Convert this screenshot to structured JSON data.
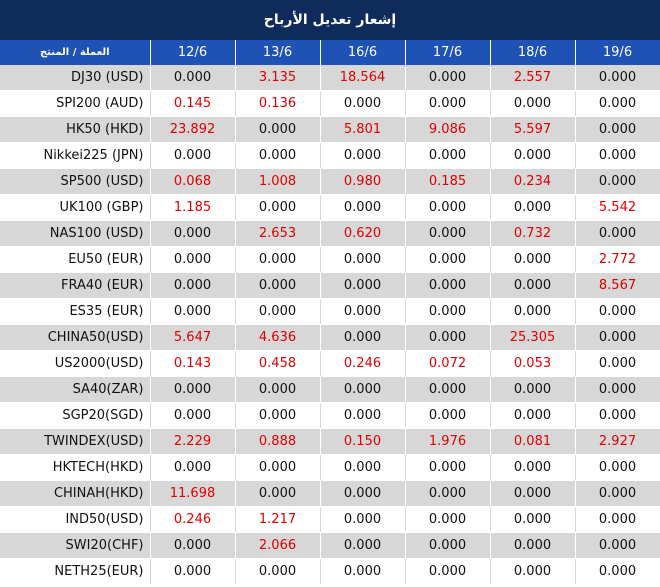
{
  "title": "إشعار تعديل الأرباح",
  "header": {
    "symbol_label": "العملة / المنتج",
    "dates": [
      "12/6",
      "13/6",
      "16/6",
      "17/6",
      "18/6",
      "19/6"
    ]
  },
  "rows": [
    {
      "symbol": "DJ30 (USD)",
      "values": [
        "0.000",
        "3.135",
        "18.564",
        "0.000",
        "2.557",
        "0.000"
      ]
    },
    {
      "symbol": "SPI200 (AUD)",
      "values": [
        "0.145",
        "0.136",
        "0.000",
        "0.000",
        "0.000",
        "0.000"
      ]
    },
    {
      "symbol": "HK50 (HKD)",
      "values": [
        "23.892",
        "0.000",
        "5.801",
        "9.086",
        "5.597",
        "0.000"
      ]
    },
    {
      "symbol": "Nikkei225 (JPN)",
      "values": [
        "0.000",
        "0.000",
        "0.000",
        "0.000",
        "0.000",
        "0.000"
      ]
    },
    {
      "symbol": "SP500 (USD)",
      "values": [
        "0.068",
        "1.008",
        "0.980",
        "0.185",
        "0.234",
        "0.000"
      ]
    },
    {
      "symbol": "UK100 (GBP)",
      "values": [
        "1.185",
        "0.000",
        "0.000",
        "0.000",
        "0.000",
        "5.542"
      ]
    },
    {
      "symbol": "NAS100 (USD)",
      "values": [
        "0.000",
        "2.653",
        "0.620",
        "0.000",
        "0.732",
        "0.000"
      ]
    },
    {
      "symbol": "EU50 (EUR)",
      "values": [
        "0.000",
        "0.000",
        "0.000",
        "0.000",
        "0.000",
        "2.772"
      ]
    },
    {
      "symbol": "FRA40 (EUR)",
      "values": [
        "0.000",
        "0.000",
        "0.000",
        "0.000",
        "0.000",
        "8.567"
      ]
    },
    {
      "symbol": "ES35 (EUR)",
      "values": [
        "0.000",
        "0.000",
        "0.000",
        "0.000",
        "0.000",
        "0.000"
      ]
    },
    {
      "symbol": "CHINA50(USD)",
      "values": [
        "5.647",
        "4.636",
        "0.000",
        "0.000",
        "25.305",
        "0.000"
      ]
    },
    {
      "symbol": "US2000(USD)",
      "values": [
        "0.143",
        "0.458",
        "0.246",
        "0.072",
        "0.053",
        "0.000"
      ]
    },
    {
      "symbol": "SA40(ZAR)",
      "values": [
        "0.000",
        "0.000",
        "0.000",
        "0.000",
        "0.000",
        "0.000"
      ]
    },
    {
      "symbol": "SGP20(SGD)",
      "values": [
        "0.000",
        "0.000",
        "0.000",
        "0.000",
        "0.000",
        "0.000"
      ]
    },
    {
      "symbol": "TWINDEX(USD)",
      "values": [
        "2.229",
        "0.888",
        "0.150",
        "1.976",
        "0.081",
        "2.927"
      ]
    },
    {
      "symbol": "HKTECH(HKD)",
      "values": [
        "0.000",
        "0.000",
        "0.000",
        "0.000",
        "0.000",
        "0.000"
      ]
    },
    {
      "symbol": "CHINAH(HKD)",
      "values": [
        "11.698",
        "0.000",
        "0.000",
        "0.000",
        "0.000",
        "0.000"
      ]
    },
    {
      "symbol": "IND50(USD)",
      "values": [
        "0.246",
        "1.217",
        "0.000",
        "0.000",
        "0.000",
        "0.000"
      ]
    },
    {
      "symbol": "SWI20(CHF)",
      "values": [
        "0.000",
        "2.066",
        "0.000",
        "0.000",
        "0.000",
        "0.000"
      ]
    },
    {
      "symbol": "NETH25(EUR)",
      "values": [
        "0.000",
        "0.000",
        "0.000",
        "0.000",
        "0.000",
        "0.000"
      ]
    }
  ],
  "colors": {
    "title_bg": "#0f2b5b",
    "header_bg": "#1e52b4",
    "row_alt_bg": "#d7d7d7",
    "positive_value": "#e00000",
    "zero_value": "#111111"
  }
}
